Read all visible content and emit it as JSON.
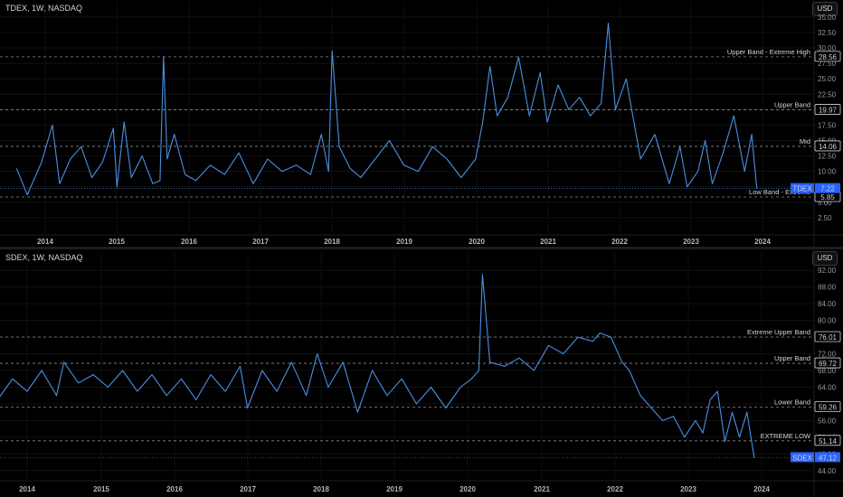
{
  "chart_data": [
    {
      "type": "line",
      "title": "TDEX, 1W, NASDAQ",
      "currency_button": "USD",
      "ylim": [
        0,
        36
      ],
      "y_ticks": [
        "35.00",
        "32.50",
        "30.00",
        "27.50",
        "25.00",
        "22.50",
        "20.00",
        "17.50",
        "15.00",
        "12.50",
        "10.00",
        "7.50",
        "5.00",
        "2.50"
      ],
      "y_tick_values": [
        35,
        32.5,
        30,
        27.5,
        25,
        22.5,
        20,
        17.5,
        15,
        12.5,
        10,
        7.5,
        5,
        2.5
      ],
      "x_ticks": [
        "2014",
        "2015",
        "2016",
        "2017",
        "2018",
        "2019",
        "2020",
        "2021",
        "2022",
        "2023",
        "2024"
      ],
      "bands": [
        {
          "label": "Upper Band - Extreme High",
          "value": 28.56,
          "value_text": "28.56"
        },
        {
          "label": "Upper Band",
          "value": 19.97,
          "value_text": "19.97"
        },
        {
          "label": "Mid",
          "value": 14.06,
          "value_text": "14.06"
        },
        {
          "label": "Low Band - Extreme",
          "value": 5.85,
          "value_text": "5.85"
        }
      ],
      "last": {
        "name": "TDEX",
        "value": 7.22,
        "value_text": "7.22"
      },
      "line_color": "#4a90e2",
      "series": [
        {
          "name": "TDEX",
          "x": [
            2013.6,
            2013.75,
            2013.95,
            2014.1,
            2014.2,
            2014.35,
            2014.5,
            2014.65,
            2014.8,
            2014.95,
            2015.0,
            2015.1,
            2015.2,
            2015.35,
            2015.5,
            2015.6,
            2015.65,
            2015.7,
            2015.8,
            2015.95,
            2016.1,
            2016.3,
            2016.5,
            2016.7,
            2016.9,
            2017.1,
            2017.3,
            2017.5,
            2017.7,
            2017.85,
            2017.95,
            2018.0,
            2018.1,
            2018.25,
            2018.4,
            2018.6,
            2018.8,
            2019.0,
            2019.2,
            2019.4,
            2019.6,
            2019.8,
            2020.0,
            2020.1,
            2020.2,
            2020.3,
            2020.45,
            2020.6,
            2020.75,
            2020.9,
            2021.0,
            2021.15,
            2021.3,
            2021.45,
            2021.6,
            2021.75,
            2021.85,
            2021.95,
            2022.1,
            2022.3,
            2022.5,
            2022.7,
            2022.85,
            2022.95,
            2023.1,
            2023.2,
            2023.3,
            2023.45,
            2023.6,
            2023.75,
            2023.85,
            2023.92
          ],
          "values": [
            10.5,
            6.2,
            11.5,
            17.5,
            8,
            12,
            14,
            9,
            11.5,
            17,
            7.5,
            18,
            9,
            12.5,
            8,
            8.5,
            28.56,
            12,
            16,
            9.5,
            8.5,
            11,
            9.5,
            13,
            8,
            12,
            10,
            11,
            9.5,
            16,
            10,
            29.5,
            14,
            10.5,
            9,
            12,
            15,
            11,
            10,
            14,
            12,
            9,
            12,
            18,
            27,
            19,
            22,
            28.5,
            19,
            26,
            18,
            24,
            20,
            22,
            19,
            21,
            34,
            20,
            25,
            12,
            16,
            8,
            14,
            7.5,
            10,
            15,
            8,
            13,
            19,
            10,
            16,
            7.22
          ]
        }
      ]
    },
    {
      "type": "line",
      "title": "SDEX, 1W, NASDAQ",
      "currency_button": "USD",
      "ylim": [
        42,
        94
      ],
      "y_ticks": [
        "92.00",
        "88.00",
        "84.00",
        "80.00",
        "76.00",
        "72.00",
        "68.00",
        "64.00",
        "60.00",
        "56.00",
        "52.00",
        "48.00",
        "44.00"
      ],
      "y_tick_values": [
        92,
        88,
        84,
        80,
        76,
        72,
        68,
        64,
        60,
        56,
        52,
        48,
        44
      ],
      "x_ticks": [
        "2014",
        "2015",
        "2016",
        "2017",
        "2018",
        "2019",
        "2020",
        "2021",
        "2022",
        "2023",
        "2024"
      ],
      "bands": [
        {
          "label": "Extreme Upper Band",
          "value": 76.01,
          "value_text": "76.01"
        },
        {
          "label": "Upper Band",
          "value": 69.72,
          "value_text": "69.72"
        },
        {
          "label": "Lower Band",
          "value": 59.26,
          "value_text": "59.26"
        },
        {
          "label": "EXTREME LOW",
          "value": 51.14,
          "value_text": "51.14"
        }
      ],
      "last": {
        "name": "SDEX",
        "value": 47.12,
        "value_text": "47.12"
      },
      "line_color": "#4a90e2",
      "series": [
        {
          "name": "SDEX",
          "x": [
            2013.6,
            2013.8,
            2014.0,
            2014.2,
            2014.4,
            2014.5,
            2014.7,
            2014.9,
            2015.1,
            2015.3,
            2015.5,
            2015.7,
            2015.9,
            2016.1,
            2016.3,
            2016.5,
            2016.7,
            2016.9,
            2017.0,
            2017.2,
            2017.4,
            2017.6,
            2017.8,
            2017.95,
            2018.1,
            2018.3,
            2018.5,
            2018.7,
            2018.9,
            2019.1,
            2019.3,
            2019.5,
            2019.7,
            2019.9,
            2020.05,
            2020.15,
            2020.2,
            2020.3,
            2020.5,
            2020.7,
            2020.9,
            2021.1,
            2021.3,
            2021.5,
            2021.7,
            2021.8,
            2021.95,
            2022.1,
            2022.2,
            2022.35,
            2022.5,
            2022.65,
            2022.8,
            2022.95,
            2023.1,
            2023.2,
            2023.3,
            2023.4,
            2023.5,
            2023.6,
            2023.7,
            2023.8,
            2023.9
          ],
          "values": [
            61,
            66,
            63,
            68,
            62,
            70,
            65,
            67,
            64,
            68,
            63,
            67,
            62,
            66,
            61,
            67,
            63,
            69,
            59,
            68,
            63,
            70,
            62,
            72,
            64,
            70,
            58,
            68,
            62,
            66,
            60,
            64,
            59,
            64,
            66,
            68,
            91,
            70,
            69,
            71,
            68,
            74,
            72,
            76,
            75,
            77,
            76,
            70,
            68,
            62,
            59,
            56,
            57,
            52,
            56,
            53,
            61,
            63,
            51,
            58,
            52,
            58,
            47
          ]
        }
      ]
    }
  ]
}
